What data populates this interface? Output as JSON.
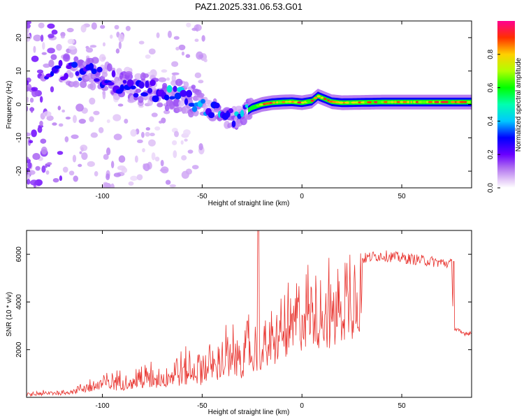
{
  "title": "PAZ1.2025.331.06.53.G01",
  "chart_data": [
    {
      "type": "heatmap",
      "name": "spectrogram",
      "xlabel": "Height of straight line (km)",
      "ylabel": "Frequency (Hz)",
      "xlim": [
        -138,
        85
      ],
      "ylim": [
        -25,
        25
      ],
      "xticks": [
        -100,
        -50,
        0,
        50
      ],
      "yticks": [
        -20,
        -10,
        0,
        10,
        20
      ],
      "colorbar": {
        "label": "Normalized spectral amplitude",
        "range": [
          0,
          1
        ],
        "ticks": [
          0.0,
          0.2,
          0.4,
          0.6,
          0.8
        ]
      },
      "ridge": {
        "x": [
          -138,
          -120,
          -105,
          -95,
          -85,
          -75,
          -65,
          -55,
          -48,
          -40,
          -35,
          -30,
          -25,
          -20,
          -15,
          -10,
          -5,
          0,
          5,
          8,
          10,
          15,
          20,
          30,
          40,
          50,
          60,
          70,
          80,
          85
        ],
        "y": [
          8,
          10,
          9,
          7,
          5,
          4,
          3,
          1,
          -1,
          -3,
          -4,
          -3,
          -1,
          0,
          0.5,
          0.7,
          0.8,
          0.5,
          1,
          2.5,
          2,
          0.8,
          0.5,
          0.6,
          0.7,
          0.7,
          0.7,
          0.7,
          0.7,
          0.7
        ]
      }
    },
    {
      "type": "line",
      "name": "snr",
      "xlabel": "Height of straight line (km)",
      "ylabel": "SNR (10 * v/v)",
      "xlim": [
        -138,
        85
      ],
      "ylim": [
        0,
        7000
      ],
      "xticks": [
        -100,
        -50,
        0,
        50
      ],
      "yticks": [
        2000,
        4000,
        6000
      ],
      "color": "#e8322d",
      "series": [
        {
          "name": "SNR",
          "x": [
            -138,
            -130,
            -120,
            -110,
            -100,
            -90,
            -80,
            -70,
            -60,
            -50,
            -45,
            -40,
            -35,
            -30,
            -25,
            -22,
            -20,
            -15,
            -10,
            -5,
            0,
            5,
            10,
            15,
            20,
            25,
            30,
            35,
            40,
            50,
            60,
            70,
            75,
            76,
            78,
            80,
            85
          ],
          "y": [
            100,
            150,
            200,
            350,
            550,
            650,
            750,
            800,
            1050,
            1150,
            1400,
            1500,
            1500,
            1800,
            2000,
            2400,
            2400,
            2800,
            3300,
            3700,
            4200,
            4400,
            4500,
            4200,
            4800,
            5300,
            5800,
            5900,
            5950,
            5850,
            5750,
            5650,
            5600,
            2900,
            2800,
            2700,
            2700
          ]
        }
      ]
    }
  ]
}
